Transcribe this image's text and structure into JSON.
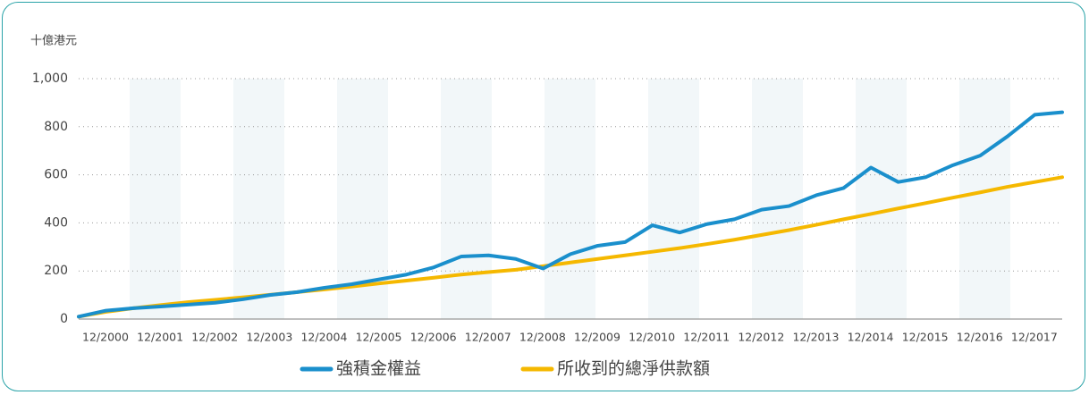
{
  "chart_data": {
    "type": "line",
    "y_label": "十億港元",
    "categories": [
      "12/2000",
      null,
      "12/2001",
      null,
      "12/2002",
      null,
      "12/2003",
      null,
      "12/2004",
      null,
      "12/2005",
      null,
      "12/2006",
      null,
      "12/2007",
      null,
      "12/2008",
      null,
      "12/2009",
      null,
      "12/2010",
      null,
      "12/2011",
      null,
      "12/2012",
      null,
      "12/2013",
      null,
      "12/2014",
      null,
      "12/2015",
      null,
      "12/2016",
      null,
      "12/2017",
      null,
      null
    ],
    "series": [
      {
        "name": "強積金權益",
        "color": "#1a8fcc",
        "values": [
          10,
          35,
          45,
          52,
          60,
          68,
          82,
          100,
          112,
          130,
          145,
          165,
          185,
          215,
          260,
          265,
          250,
          210,
          270,
          305,
          320,
          390,
          360,
          395,
          415,
          455,
          470,
          515,
          545,
          630,
          570,
          590,
          640,
          680,
          760,
          850,
          860
        ]
      },
      {
        "name": "所收到的總淨供款額",
        "color": "#f5b800",
        "values": [
          10,
          30,
          45,
          58,
          70,
          80,
          90,
          101,
          112,
          123,
          135,
          148,
          160,
          172,
          185,
          195,
          205,
          220,
          235,
          250,
          265,
          280,
          295,
          312,
          330,
          350,
          370,
          392,
          415,
          437,
          460,
          482,
          505,
          527,
          550,
          570,
          590
        ]
      }
    ],
    "ylim": [
      0,
      1000
    ],
    "yticks": [
      0,
      200,
      400,
      600,
      800,
      {
        "value": 1000,
        "label": "1,000"
      }
    ],
    "grid": true
  }
}
